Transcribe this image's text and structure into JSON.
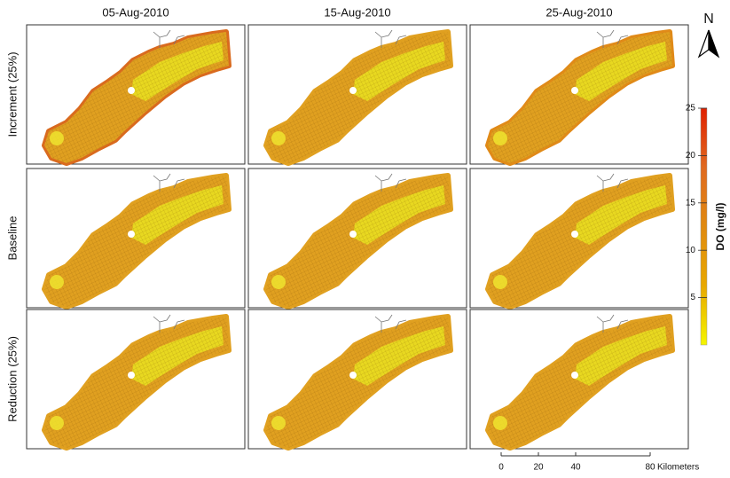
{
  "columns": [
    "05-Aug-2010",
    "15-Aug-2010",
    "25-Aug-2010"
  ],
  "rows": [
    "Increment (25%)",
    "Baseline",
    "Reduction (25%)"
  ],
  "north_label": "N",
  "colorbar": {
    "label": "DO (mg/l)",
    "lim": [
      0,
      25
    ],
    "ticks": [
      5,
      10,
      15,
      20,
      25
    ],
    "colors": [
      "#f5f500",
      "#e8a800",
      "#e08a10",
      "#e06a20",
      "#e02000"
    ]
  },
  "scale_bar": {
    "ticks": [
      0,
      20,
      40,
      80
    ],
    "unit": "Kilometers"
  }
}
